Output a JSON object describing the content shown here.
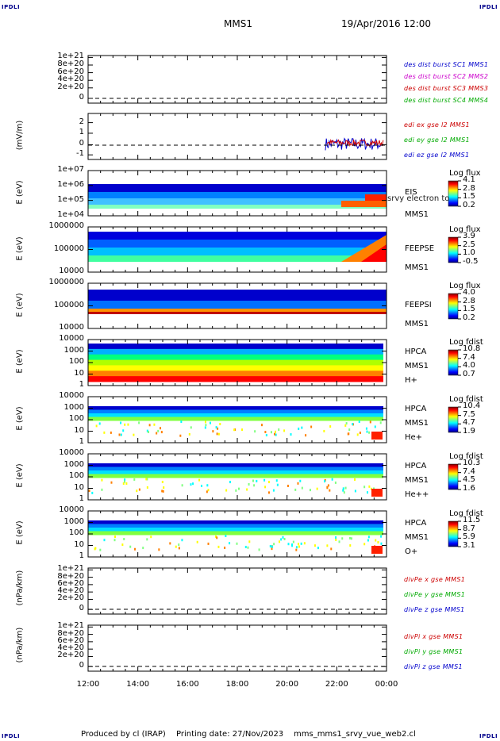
{
  "corners": {
    "tl": "IPDLI",
    "tr": "IPDLI",
    "bl": "IPDLI",
    "br": "IPDLI"
  },
  "header": {
    "mission": "MMS1",
    "datetime": "19/Apr/2016 12:00"
  },
  "x_ticks": [
    "12:00",
    "14:00",
    "16:00",
    "18:00",
    "20:00",
    "22:00",
    "00:00"
  ],
  "footer": {
    "produced": "Produced by cl (IRAP)",
    "printed": "Printing date: 27/Nov/2023",
    "file": "mms_mms1_srvy_vue_web2.cl"
  },
  "colors": {
    "blue": "#0000cc",
    "magenta": "#cc00cc",
    "red": "#cc0000",
    "green": "#00aa00"
  },
  "chart_data": [
    {
      "type": "line",
      "ylabel": "",
      "yticks": [
        "1e+21",
        "8e+20",
        "6e+20",
        "4e+20",
        "2e+20",
        "0"
      ],
      "ylim": [
        0,
        1e+21
      ],
      "series": [
        {
          "name": "des dist burst SC1 MMS1",
          "color": "#0000cc"
        },
        {
          "name": "des dist burst SC2 MMS2",
          "color": "#cc00cc"
        },
        {
          "name": "des dist burst SC3 MMS3",
          "color": "#cc0000"
        },
        {
          "name": "des dist burst SC4 MMS4",
          "color": "#00aa00"
        }
      ]
    },
    {
      "type": "line",
      "ylabel": "(mV/m)",
      "yticks": [
        "2",
        "1",
        "0",
        "-1"
      ],
      "ylim": [
        -1.4,
        2.8
      ],
      "series": [
        {
          "name": "edi ex gse l2 MMS1",
          "color": "#cc0000"
        },
        {
          "name": "edi ey gse l2 MMS1",
          "color": "#00aa00"
        },
        {
          "name": "edi ez gse l2 MMS1",
          "color": "#0000cc"
        }
      ]
    },
    {
      "type": "heatmap",
      "ylabel": "E (eV)",
      "yticks": [
        "1e+07",
        "1e+06",
        "1e+05",
        "1e+04"
      ],
      "labels": [
        "EIS",
        "MMS1"
      ],
      "overlay": "srvy electron to",
      "cbar_title": "Log flux",
      "cbar_ticks": [
        "4.1",
        "2.8",
        "1.5",
        "0.2"
      ]
    },
    {
      "type": "heatmap",
      "ylabel": "E (eV)",
      "yticks": [
        "1000000",
        "100000",
        "10000"
      ],
      "labels": [
        "FEEPSE",
        "MMS1"
      ],
      "cbar_title": "Log flux",
      "cbar_ticks": [
        "3.9",
        "2.5",
        "1.0",
        "-0.5"
      ]
    },
    {
      "type": "heatmap",
      "ylabel": "E (eV)",
      "yticks": [
        "1000000",
        "100000",
        "10000"
      ],
      "labels": [
        "FEEPSI",
        "MMS1"
      ],
      "cbar_title": "Log flux",
      "cbar_ticks": [
        "4.0",
        "2.8",
        "1.5",
        "0.2"
      ]
    },
    {
      "type": "heatmap",
      "ylabel": "E (eV)",
      "yticks": [
        "10000",
        "1000",
        "100",
        "10",
        "1"
      ],
      "labels": [
        "HPCA",
        "MMS1",
        "H+"
      ],
      "cbar_title": "Log fdist",
      "cbar_ticks": [
        "10.8",
        "7.4",
        "4.0",
        "0.7"
      ]
    },
    {
      "type": "heatmap",
      "ylabel": "E (eV)",
      "yticks": [
        "10000",
        "1000",
        "100",
        "10",
        "1"
      ],
      "labels": [
        "HPCA",
        "MMS1",
        "He+"
      ],
      "cbar_title": "Log fdist",
      "cbar_ticks": [
        "10.4",
        "7.5",
        "4.7",
        "1.9"
      ]
    },
    {
      "type": "heatmap",
      "ylabel": "E (eV)",
      "yticks": [
        "10000",
        "1000",
        "100",
        "10",
        "1"
      ],
      "labels": [
        "HPCA",
        "MMS1",
        "He++"
      ],
      "cbar_title": "Log fdist",
      "cbar_ticks": [
        "10.3",
        "7.4",
        "4.5",
        "1.6"
      ]
    },
    {
      "type": "heatmap",
      "ylabel": "E (eV)",
      "yticks": [
        "10000",
        "1000",
        "100",
        "10",
        "1"
      ],
      "labels": [
        "HPCA",
        "MMS1",
        "O+"
      ],
      "cbar_title": "Log fdist",
      "cbar_ticks": [
        "11.5",
        "8.7",
        "5.9",
        "3.1"
      ]
    },
    {
      "type": "line",
      "ylabel": "(nPa/km)",
      "yticks": [
        "1e+21",
        "8e+20",
        "6e+20",
        "4e+20",
        "2e+20",
        "0"
      ],
      "ylim": [
        0,
        1e+21
      ],
      "series": [
        {
          "name": "divPe x gse MMS1",
          "color": "#cc0000"
        },
        {
          "name": "divPe y gse MMS1",
          "color": "#00aa00"
        },
        {
          "name": "divPe z gse MMS1",
          "color": "#0000cc"
        }
      ]
    },
    {
      "type": "line",
      "ylabel": "(nPa/km)",
      "yticks": [
        "1e+21",
        "8e+20",
        "6e+20",
        "4e+20",
        "2e+20",
        "0"
      ],
      "ylim": [
        0,
        1e+21
      ],
      "series": [
        {
          "name": "divPi x gse MMS1",
          "color": "#cc0000"
        },
        {
          "name": "divPi y gse MMS1",
          "color": "#00aa00"
        },
        {
          "name": "divPi z gse MMS1",
          "color": "#0000cc"
        }
      ]
    }
  ]
}
